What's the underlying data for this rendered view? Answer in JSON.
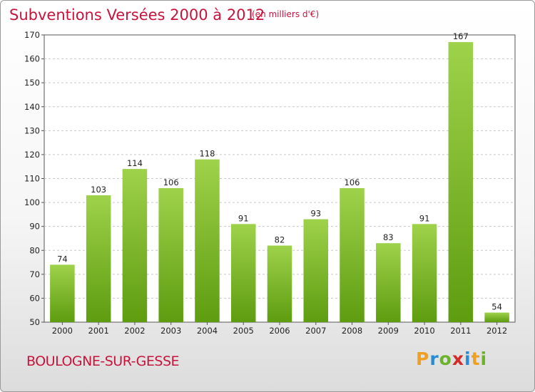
{
  "header": {
    "title": "Subventions Versées 2000 à 2012",
    "unit_note": "(en milliers d'€)"
  },
  "footer": {
    "commune": "BOULOGNE-SUR-GESSE",
    "logo_letters": [
      "P",
      "r",
      "o",
      "x",
      "i",
      "t",
      "i"
    ]
  },
  "colors": {
    "title": "#c8143c",
    "bar_top": "#9ed24a",
    "bar_bottom": "#5e9c10"
  },
  "chart_data": {
    "type": "bar",
    "categories": [
      "2000",
      "2001",
      "2002",
      "2003",
      "2004",
      "2005",
      "2006",
      "2007",
      "2008",
      "2009",
      "2010",
      "2011",
      "2012"
    ],
    "values": [
      74,
      103,
      114,
      106,
      118,
      91,
      82,
      93,
      106,
      83,
      91,
      167,
      54
    ],
    "ylim": [
      50,
      170
    ],
    "yticks": [
      50,
      60,
      70,
      80,
      90,
      100,
      110,
      120,
      130,
      140,
      150,
      160,
      170
    ],
    "grid": true
  }
}
